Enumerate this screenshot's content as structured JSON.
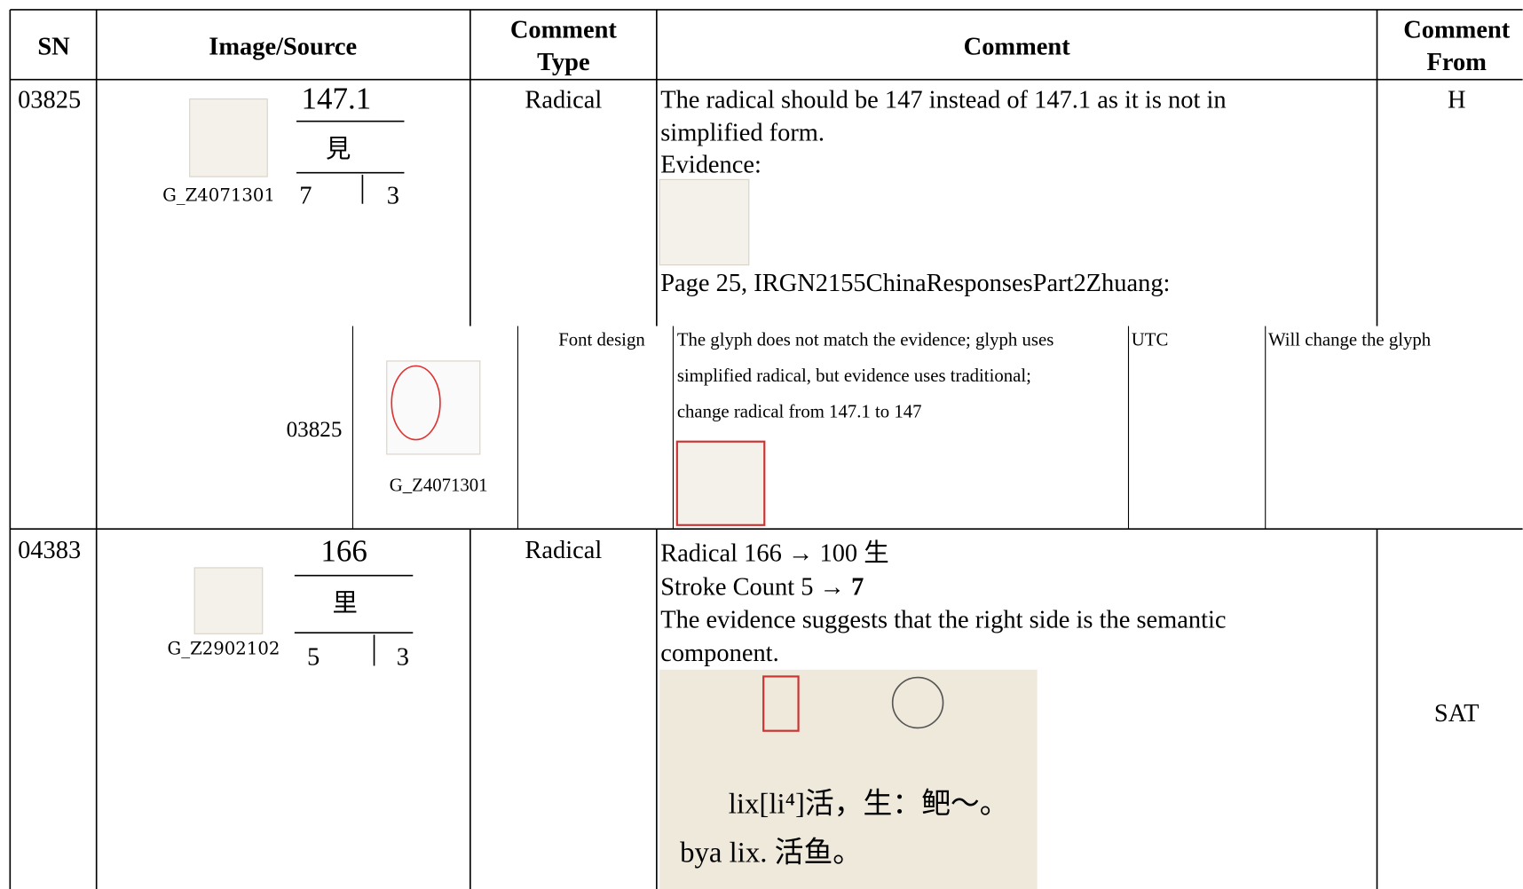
{
  "table": {
    "header": [
      "SN",
      "Image/Source",
      "Comment",
      "Type",
      "Comment",
      "Comment",
      "From"
    ],
    "rows": [
      {
        "sn": "03825",
        "radical": "147.1",
        "radical_char": "見",
        "source_id": "G_Z4071301",
        "strokes_left": "7",
        "strokes_right": "3",
        "comment_type": "Radical",
        "comment_lines": [
          "The radical should be 147 instead of 147.1 as it is not in",
          "simplified form.",
          "Evidence:"
        ],
        "evidence_caption": "Page 25, IRGN2155ChinaResponsesPart2Zhuang:",
        "comment_from": "H",
        "evidence_row": {
          "sn": "03825",
          "source_id": "G_Z4071301",
          "type": "Font design",
          "comment_lines": [
            "The glyph does not match the evidence; glyph uses",
            "simplified radical, but evidence uses traditional;",
            "change radical from 147.1 to 147"
          ],
          "from": "UTC",
          "response": "Will change the glyph"
        }
      },
      {
        "sn": "04383",
        "radical": "166",
        "radical_char": "里",
        "source_id": "G_Z2902102",
        "strokes_left": "5",
        "strokes_right": "3",
        "comment_type": "Radical",
        "comment_lines": [
          "Radical 166 → 100 生",
          "The evidence suggests that the right side is the semantic",
          "component."
        ],
        "stroke_line": {
          "text": "Stroke Count 5 →",
          "bold": "7"
        },
        "evidence_lines": [
          "lix[li⁴]活，生：鲃～。",
          "bya lix. 活鱼。"
        ],
        "comment_from": "SAT"
      }
    ]
  }
}
